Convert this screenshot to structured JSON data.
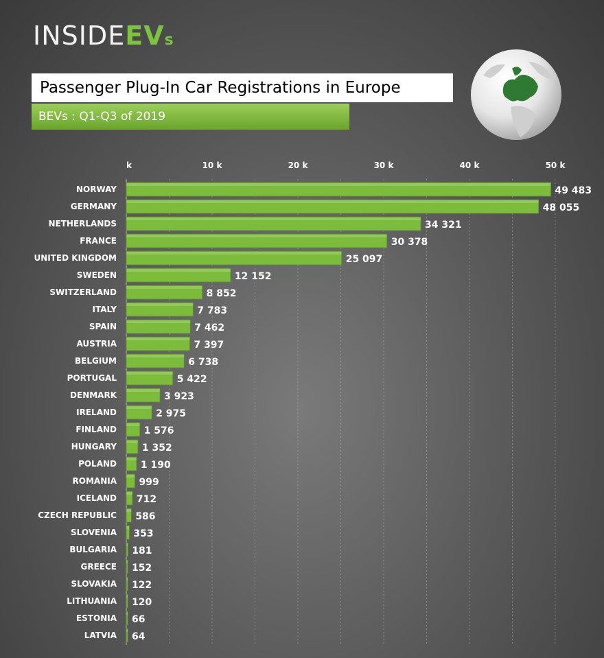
{
  "logo": {
    "part1": "INSIDE",
    "part2": "EV",
    "part3": "s"
  },
  "title": "Passenger Plug-In Car Registrations in Europe",
  "subtitle": "BEVs : Q1-Q3 of 2019",
  "colors": {
    "bar": "#7dbb3c",
    "accent": "#7dc242"
  },
  "chart_data": {
    "type": "bar",
    "orientation": "horizontal",
    "title": "Passenger Plug-In Car Registrations in Europe",
    "subtitle": "BEVs : Q1-Q3 of 2019",
    "xlim": [
      0,
      50000
    ],
    "ticks": [
      0,
      10000,
      20000,
      30000,
      40000,
      50000
    ],
    "tick_labels": [
      "k",
      "10 k",
      "20 k",
      "30 k",
      "40 k",
      "50 k"
    ],
    "categories": [
      "NORWAY",
      "GERMANY",
      "NETHERLANDS",
      "FRANCE",
      "UNITED KINGDOM",
      "SWEDEN",
      "SWITZERLAND",
      "ITALY",
      "SPAIN",
      "AUSTRIA",
      "BELGIUM",
      "PORTUGAL",
      "DENMARK",
      "IRELAND",
      "FINLAND",
      "HUNGARY",
      "POLAND",
      "ROMANIA",
      "ICELAND",
      "CZECH REPUBLIC",
      "SLOVENIA",
      "BULGARIA",
      "GREECE",
      "SLOVAKIA",
      "LITHUANIA",
      "ESTONIA",
      "LATVIA"
    ],
    "values": [
      49483,
      48055,
      34321,
      30378,
      25097,
      12152,
      8852,
      7783,
      7462,
      7397,
      6738,
      5422,
      3923,
      2975,
      1576,
      1352,
      1190,
      999,
      712,
      586,
      353,
      181,
      152,
      122,
      120,
      66,
      64
    ],
    "value_labels": [
      "49 483",
      "48 055",
      "34 321",
      "30 378",
      "25 097",
      "12 152",
      "8 852",
      "7 783",
      "7 462",
      "7 397",
      "6 738",
      "5 422",
      "3 923",
      "2 975",
      "1 576",
      "1 352",
      "1 190",
      "999",
      "712",
      "586",
      "353",
      "181",
      "152",
      "122",
      "120",
      "66",
      "64"
    ]
  }
}
